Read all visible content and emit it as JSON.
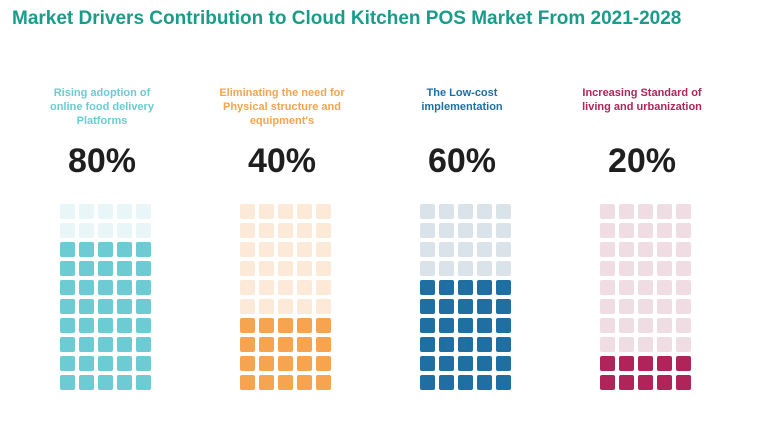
{
  "title": "Market Drivers Contribution to Cloud Kitchen POS Market From 2021-2028",
  "title_color": "#1a9c8a",
  "chart_data": {
    "type": "waffle",
    "title": "Market Drivers Contribution to Cloud Kitchen POS Market From 2021-2028",
    "grid": {
      "rows": 10,
      "cols": 5
    },
    "categories": [
      "Rising adoption of online food delivery Platforms",
      "Eliminating the need for Physical structure and equipment's",
      "The Low-cost implementation",
      "Increasing Standard of living and urbanization"
    ],
    "values": [
      80,
      40,
      60,
      20
    ],
    "unit": "%"
  },
  "drivers": [
    {
      "label_lines": [
        "Rising adoption of",
        "online food delivery",
        "Platforms"
      ],
      "value_label": "80%",
      "value": 80,
      "color": "#6ccbd3",
      "faded_color": "#e8f6f7"
    },
    {
      "label_lines": [
        "Eliminating the need for",
        "Physical structure and",
        "equipment's"
      ],
      "value_label": "40%",
      "value": 40,
      "color": "#f6a44f",
      "faded_color": "#fde9d8"
    },
    {
      "label_lines": [
        "The Low-cost",
        "implementation"
      ],
      "value_label": "60%",
      "value": 60,
      "color": "#1f6fa3",
      "faded_color": "#dbe3ea"
    },
    {
      "label_lines": [
        "Increasing Standard of",
        "living and urbanization"
      ],
      "value_label": "20%",
      "value": 20,
      "color": "#b0245a",
      "faded_color": "#f0dde3"
    }
  ]
}
